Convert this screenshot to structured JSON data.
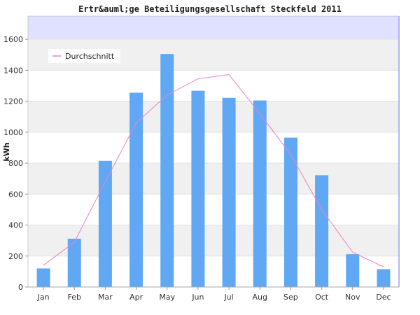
{
  "chart_data": {
    "type": "bar",
    "title": "Ertr&auml;ge Beteiligungsgesellschaft Steckfeld 2011",
    "ylabel": "kWh",
    "xlabel": "",
    "ylim": [
      0,
      1750
    ],
    "yticks": [
      0,
      200,
      400,
      600,
      800,
      1000,
      1200,
      1400,
      1600
    ],
    "categories": [
      "Jan",
      "Feb",
      "Mar",
      "Apr",
      "May",
      "Jun",
      "Jul",
      "Aug",
      "Sep",
      "Oct",
      "Nov",
      "Dec"
    ],
    "series": [
      {
        "kind": "bar",
        "color": "#60a8f4",
        "values": [
          120,
          312,
          815,
          1255,
          1505,
          1268,
          1222,
          1205,
          965,
          722,
          212,
          115
        ]
      },
      {
        "kind": "line",
        "name": "Durchschnitt",
        "color": "#f080c0",
        "values": [
          140,
          290,
          680,
          1060,
          1240,
          1345,
          1372,
          1120,
          855,
          500,
          225,
          130
        ]
      }
    ],
    "grid": true,
    "legend_position": "top-left",
    "colors": {
      "band_alt": "#f0f0f0",
      "band_top": "#e0e0ff",
      "axis": "#aaaaaa",
      "right_axis": "#a0a0f0"
    }
  }
}
